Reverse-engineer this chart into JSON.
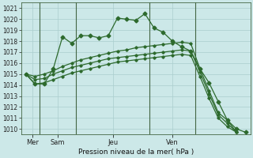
{
  "xlabel": "Pression niveau de la mer( hPa )",
  "ylim": [
    1009.5,
    1021.5
  ],
  "yticks": [
    1010,
    1011,
    1012,
    1013,
    1014,
    1015,
    1016,
    1017,
    1018,
    1019,
    1020,
    1021
  ],
  "xtick_labels": [
    "Mer",
    "Sam",
    "Jeu",
    "Ven"
  ],
  "bg_color": "#cce8e8",
  "line_color": "#2d6a2d",
  "grid_color": "#aacece",
  "series_main": [
    1015.0,
    1014.1,
    1014.1,
    1015.5,
    1018.4,
    1017.8,
    1018.5,
    1018.5,
    1018.3,
    1018.5,
    1020.1,
    1020.0,
    1019.9,
    1020.5,
    1019.2,
    1018.8,
    1018.0,
    1017.5,
    1017.1,
    1015.5,
    1014.2,
    1012.5,
    1010.8,
    1010.0,
    1009.7
  ],
  "series_upper": [
    1015.0,
    1014.8,
    1015.0,
    1015.3,
    1015.7,
    1016.0,
    1016.3,
    1016.5,
    1016.7,
    1016.9,
    1017.1,
    1017.2,
    1017.4,
    1017.5,
    1017.6,
    1017.7,
    1017.8,
    1017.9,
    1017.8,
    1015.5,
    1013.5,
    1011.5,
    1010.8,
    1009.7
  ],
  "series_mid": [
    1015.0,
    1014.5,
    1014.6,
    1015.0,
    1015.3,
    1015.6,
    1015.8,
    1016.0,
    1016.2,
    1016.4,
    1016.5,
    1016.6,
    1016.7,
    1016.8,
    1016.9,
    1017.0,
    1017.1,
    1017.2,
    1017.1,
    1015.2,
    1013.2,
    1011.3,
    1010.5,
    1009.7
  ],
  "series_lower": [
    1015.0,
    1014.1,
    1014.2,
    1014.5,
    1014.8,
    1015.1,
    1015.3,
    1015.5,
    1015.7,
    1015.9,
    1016.1,
    1016.2,
    1016.3,
    1016.4,
    1016.5,
    1016.6,
    1016.7,
    1016.8,
    1016.7,
    1014.8,
    1012.8,
    1011.0,
    1010.2,
    1009.7
  ],
  "x_main": [
    0,
    1,
    2,
    3,
    4,
    5,
    6,
    7,
    8,
    9,
    10,
    11,
    12,
    13,
    14,
    15,
    16,
    17,
    18,
    19,
    20,
    21,
    22,
    23,
    24
  ],
  "x_band": [
    0,
    1,
    2,
    3,
    4,
    5,
    6,
    7,
    8,
    9,
    10,
    11,
    12,
    13,
    14,
    15,
    16,
    17,
    18,
    19,
    20,
    21,
    22,
    23
  ],
  "vlines_x": [
    1.5,
    5.5,
    13.5,
    18.5
  ],
  "xtick_x": [
    0.75,
    3.5,
    9.5,
    16.0
  ]
}
